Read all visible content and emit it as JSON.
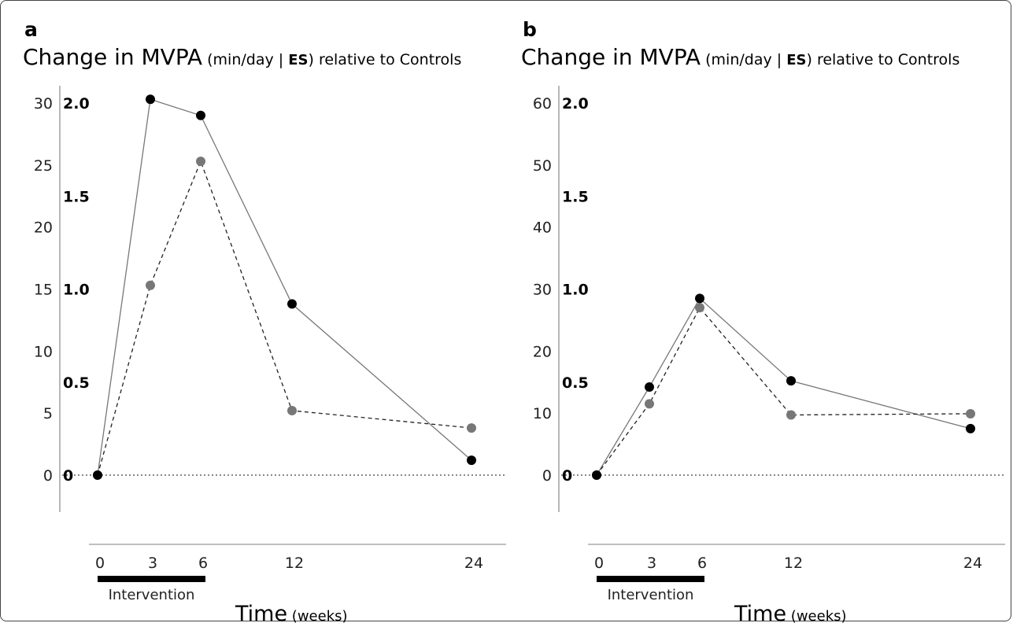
{
  "panels": [
    {
      "label": "a",
      "title": {
        "main": "Change in MVPA",
        "open": " (min/day | ",
        "es": "ES",
        "close": ")",
        "rest": " relative to Controls"
      },
      "y_ticks_min": [
        "0",
        "5",
        "10",
        "15",
        "20",
        "25",
        "30"
      ],
      "y_ticks_es": [
        "0",
        "0.5",
        "1.0",
        "1.5",
        "2.0"
      ],
      "x_ticks": [
        "0",
        "3",
        "6",
        "12",
        "24"
      ],
      "intervention_label": "Intervention",
      "xlabel": {
        "main": "Time",
        "sub": " (weeks)"
      }
    },
    {
      "label": "b",
      "title": {
        "main": "Change in MVPA",
        "open": " (min/day | ",
        "es": "ES",
        "close": ")",
        "rest": " relative to Controls"
      },
      "y_ticks_min": [
        "0",
        "10",
        "20",
        "30",
        "40",
        "50",
        "60"
      ],
      "y_ticks_es": [
        "0",
        "0.5",
        "1.0",
        "1.5",
        "2.0"
      ],
      "x_ticks": [
        "0",
        "3",
        "6",
        "12",
        "24"
      ],
      "intervention_label": "Intervention",
      "xlabel": {
        "main": "Time",
        "sub": " (weeks)"
      }
    }
  ],
  "chart_data": [
    {
      "type": "line",
      "x": [
        0,
        3,
        6,
        12,
        24
      ],
      "xlabel": "Time (weeks)",
      "ylabel": "Change in MVPA (min/day | ES) relative to Controls",
      "ylim": [
        0,
        30
      ],
      "secondary_ylim": [
        0,
        2.0
      ],
      "intervention_weeks": [
        0,
        6
      ],
      "series": [
        {
          "values": [
            0,
            30.3,
            29.0,
            13.8,
            1.2
          ],
          "color": "#000000",
          "line": "solid",
          "line_color": "#777777"
        },
        {
          "values": [
            0,
            15.3,
            25.3,
            5.2,
            3.8
          ],
          "color": "#777777",
          "line": "dashed",
          "line_color": "#222222"
        }
      ],
      "zero_line": "dotted"
    },
    {
      "type": "line",
      "x": [
        0,
        3,
        6,
        12,
        24
      ],
      "xlabel": "Time (weeks)",
      "ylabel": "Change in MVPA (min/day | ES) relative to Controls",
      "ylim": [
        0,
        60
      ],
      "secondary_ylim": [
        0,
        2.0
      ],
      "intervention_weeks": [
        0,
        6
      ],
      "series": [
        {
          "values": [
            0,
            14.2,
            28.5,
            15.2,
            7.5
          ],
          "color": "#000000",
          "line": "solid",
          "line_color": "#777777"
        },
        {
          "values": [
            0,
            11.5,
            27.0,
            9.7,
            9.9
          ],
          "color": "#777777",
          "line": "dashed",
          "line_color": "#222222"
        }
      ],
      "zero_line": "dotted"
    }
  ]
}
